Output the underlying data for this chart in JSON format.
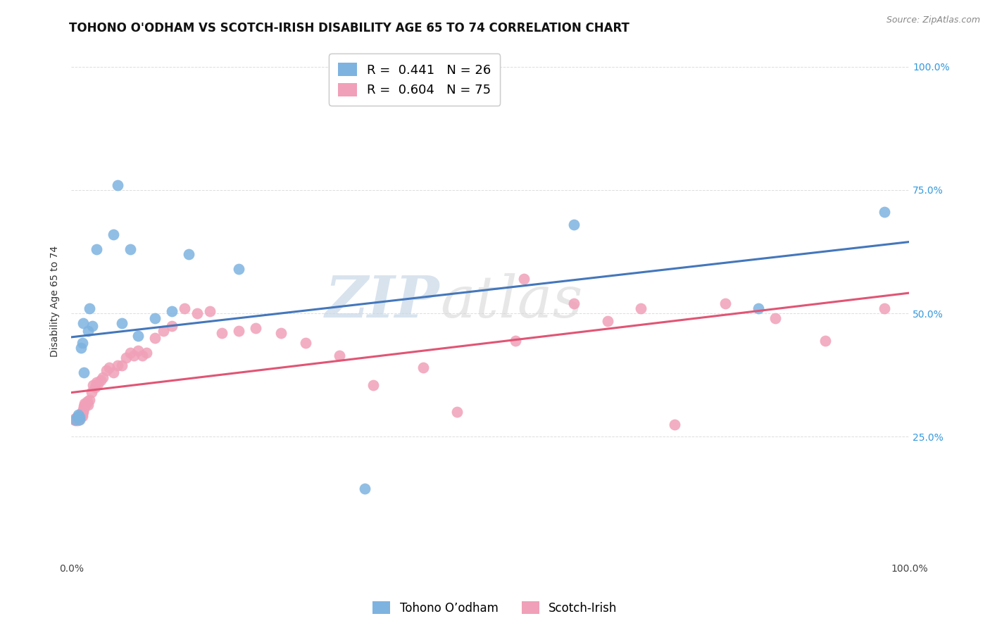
{
  "title": "TOHONO O'ODHAM VS SCOTCH-IRISH DISABILITY AGE 65 TO 74 CORRELATION CHART",
  "source": "Source: ZipAtlas.com",
  "ylabel": "Disability Age 65 to 74",
  "legend_label_blue": "Tohono O’odham",
  "legend_label_pink": "Scotch-Irish",
  "r_blue": 0.441,
  "n_blue": 26,
  "r_pink": 0.604,
  "n_pink": 75,
  "blue_color": "#7EB3E0",
  "pink_color": "#F0A0B8",
  "trendline_blue": "#4477BB",
  "trendline_pink": "#E05575",
  "watermark_zip": "ZIP",
  "watermark_atlas": "atlas",
  "blue_x": [
    0.005,
    0.007,
    0.008,
    0.01,
    0.01,
    0.012,
    0.013,
    0.014,
    0.015,
    0.02,
    0.022,
    0.025,
    0.03,
    0.05,
    0.055,
    0.06,
    0.07,
    0.08,
    0.1,
    0.12,
    0.14,
    0.2,
    0.35,
    0.6,
    0.82,
    0.97
  ],
  "blue_y": [
    0.285,
    0.29,
    0.295,
    0.285,
    0.29,
    0.43,
    0.44,
    0.48,
    0.38,
    0.465,
    0.51,
    0.475,
    0.63,
    0.66,
    0.76,
    0.48,
    0.63,
    0.455,
    0.49,
    0.505,
    0.62,
    0.59,
    0.145,
    0.68,
    0.51,
    0.705
  ],
  "pink_x": [
    0.003,
    0.004,
    0.005,
    0.005,
    0.005,
    0.006,
    0.006,
    0.007,
    0.007,
    0.008,
    0.008,
    0.009,
    0.009,
    0.01,
    0.01,
    0.011,
    0.011,
    0.012,
    0.012,
    0.013,
    0.013,
    0.014,
    0.014,
    0.015,
    0.015,
    0.016,
    0.016,
    0.017,
    0.018,
    0.019,
    0.02,
    0.022,
    0.024,
    0.026,
    0.028,
    0.03,
    0.032,
    0.035,
    0.038,
    0.042,
    0.045,
    0.05,
    0.055,
    0.06,
    0.065,
    0.07,
    0.075,
    0.08,
    0.085,
    0.09,
    0.1,
    0.11,
    0.12,
    0.135,
    0.15,
    0.165,
    0.18,
    0.2,
    0.22,
    0.25,
    0.28,
    0.32,
    0.36,
    0.42,
    0.46,
    0.53,
    0.54,
    0.6,
    0.64,
    0.68,
    0.72,
    0.78,
    0.84,
    0.9,
    0.97
  ],
  "pink_y": [
    0.285,
    0.285,
    0.284,
    0.285,
    0.287,
    0.285,
    0.288,
    0.284,
    0.287,
    0.285,
    0.288,
    0.285,
    0.29,
    0.287,
    0.29,
    0.29,
    0.295,
    0.292,
    0.298,
    0.292,
    0.297,
    0.3,
    0.305,
    0.308,
    0.312,
    0.314,
    0.317,
    0.315,
    0.318,
    0.322,
    0.315,
    0.325,
    0.34,
    0.355,
    0.35,
    0.36,
    0.358,
    0.365,
    0.37,
    0.385,
    0.39,
    0.38,
    0.395,
    0.395,
    0.41,
    0.42,
    0.415,
    0.425,
    0.415,
    0.42,
    0.45,
    0.465,
    0.475,
    0.51,
    0.5,
    0.505,
    0.46,
    0.465,
    0.47,
    0.46,
    0.44,
    0.415,
    0.355,
    0.39,
    0.3,
    0.445,
    0.57,
    0.52,
    0.485,
    0.51,
    0.275,
    0.52,
    0.49,
    0.445,
    0.51
  ],
  "title_fontsize": 12,
  "axis_label_fontsize": 10,
  "tick_fontsize": 10,
  "legend_fontsize": 13,
  "source_fontsize": 9
}
